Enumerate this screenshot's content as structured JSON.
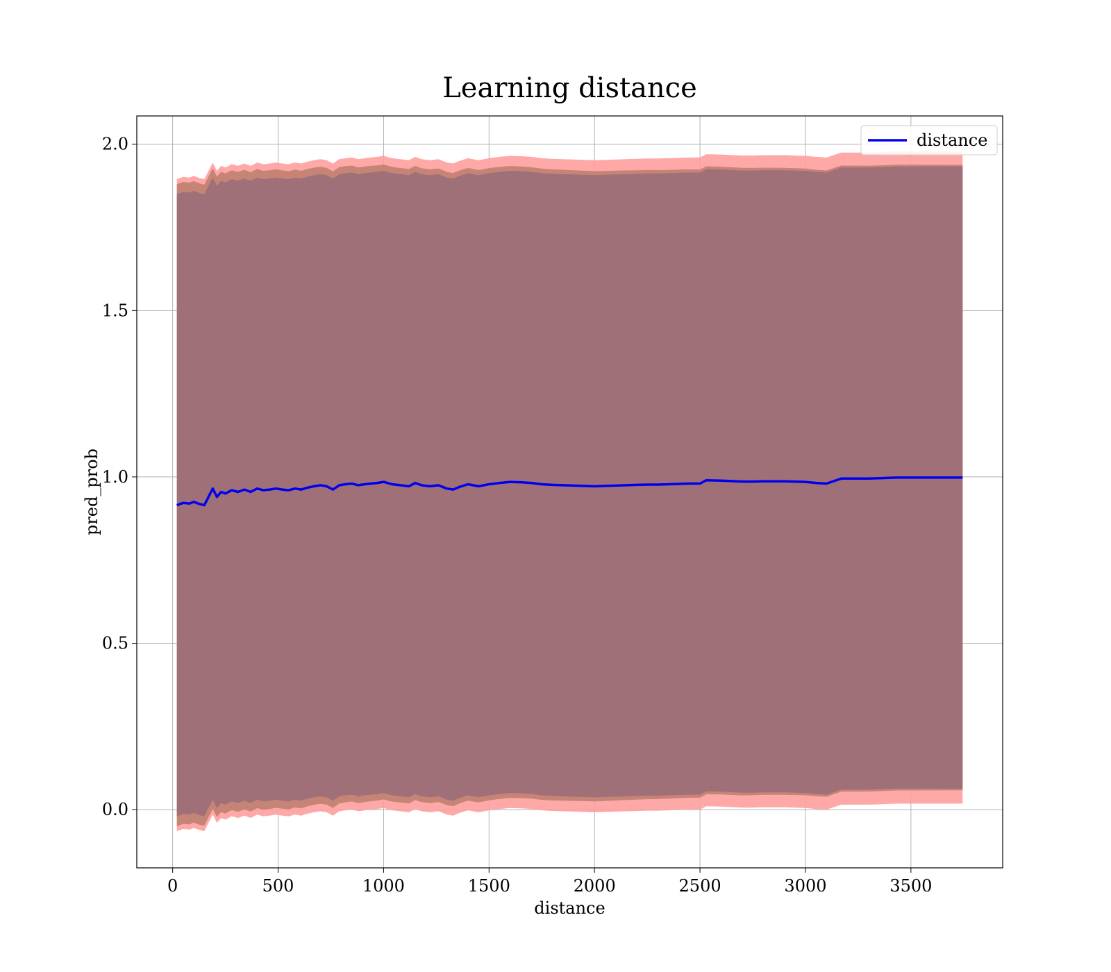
{
  "chart_data": {
    "type": "line",
    "title": "Learning distance",
    "xlabel": "distance",
    "ylabel": "pred_prob",
    "xlim": [
      -170,
      3935
    ],
    "ylim": [
      -0.175,
      2.085
    ],
    "xticks": [
      0,
      500,
      1000,
      1500,
      2000,
      2500,
      3000,
      3500
    ],
    "xtick_labels": [
      "0",
      "500",
      "1000",
      "1500",
      "2000",
      "2500",
      "3000",
      "3500"
    ],
    "yticks": [
      0.0,
      0.5,
      1.0,
      1.5,
      2.0
    ],
    "ytick_labels": [
      "0.0",
      "0.5",
      "1.0",
      "1.5",
      "2.0"
    ],
    "grid": true,
    "legend": {
      "position": "top-right",
      "entries": [
        "distance"
      ]
    },
    "colors": {
      "line": "#0000ee",
      "outer_band": "#ff9e9e",
      "middle_band": "#c08070",
      "inner_band": "#9e6f78"
    },
    "series": [
      {
        "name": "distance",
        "x": [
          20,
          50,
          80,
          100,
          130,
          150,
          170,
          190,
          210,
          230,
          250,
          280,
          310,
          340,
          370,
          400,
          430,
          460,
          490,
          520,
          550,
          580,
          610,
          640,
          670,
          700,
          730,
          760,
          790,
          820,
          850,
          880,
          910,
          940,
          970,
          1000,
          1040,
          1080,
          1120,
          1150,
          1180,
          1220,
          1260,
          1300,
          1330,
          1360,
          1400,
          1450,
          1500,
          1550,
          1600,
          1650,
          1700,
          1750,
          1800,
          1850,
          1900,
          1950,
          2000,
          2050,
          2100,
          2150,
          2200,
          2250,
          2300,
          2350,
          2400,
          2450,
          2500,
          2530,
          2600,
          2700,
          2750,
          2800,
          2900,
          3000,
          3050,
          3100,
          3170,
          3300,
          3430,
          3745
        ],
        "y": [
          0.915,
          0.922,
          0.92,
          0.925,
          0.918,
          0.915,
          0.94,
          0.965,
          0.94,
          0.955,
          0.95,
          0.96,
          0.955,
          0.962,
          0.955,
          0.965,
          0.96,
          0.962,
          0.965,
          0.962,
          0.96,
          0.965,
          0.962,
          0.968,
          0.972,
          0.975,
          0.972,
          0.962,
          0.975,
          0.978,
          0.98,
          0.975,
          0.978,
          0.98,
          0.982,
          0.985,
          0.978,
          0.975,
          0.972,
          0.982,
          0.975,
          0.972,
          0.975,
          0.965,
          0.962,
          0.97,
          0.978,
          0.972,
          0.978,
          0.982,
          0.985,
          0.984,
          0.982,
          0.978,
          0.976,
          0.975,
          0.974,
          0.973,
          0.972,
          0.973,
          0.974,
          0.975,
          0.976,
          0.977,
          0.977,
          0.978,
          0.979,
          0.98,
          0.98,
          0.99,
          0.989,
          0.986,
          0.986,
          0.987,
          0.987,
          0.985,
          0.982,
          0.98,
          0.995,
          0.995,
          0.998,
          0.998
        ]
      }
    ],
    "bands": [
      {
        "name": "outer",
        "half_width_start": 0.98,
        "half_width_end": 0.98
      },
      {
        "name": "middle",
        "half_width_start": 0.965,
        "half_width_end": 0.94
      },
      {
        "name": "inner",
        "half_width_start": 0.935,
        "half_width_end": 0.935
      }
    ]
  }
}
